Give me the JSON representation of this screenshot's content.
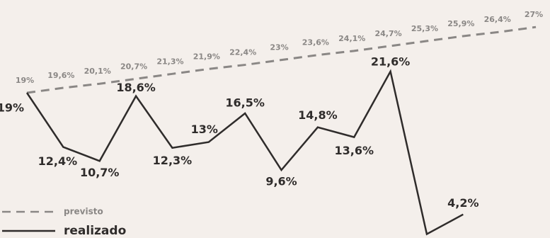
{
  "chart_data": {
    "type": "line",
    "categories": [
      null,
      null,
      null,
      null,
      null,
      null,
      null,
      null,
      null,
      null,
      null,
      null,
      null,
      null,
      null
    ],
    "ylim": [
      0,
      28
    ],
    "legend": "bottom-left",
    "series": [
      {
        "name": "previsto",
        "color": "#8a8785",
        "dashed": true,
        "values": [
          19,
          19.6,
          20.1,
          20.7,
          21.3,
          21.9,
          22.4,
          23,
          23.6,
          24.1,
          24.7,
          25.3,
          25.9,
          26.4,
          27
        ],
        "value_labels": [
          "19%",
          "19,6%",
          "20,1%",
          "20,7%",
          "21,3%",
          "21,9%",
          "22,4%",
          "23%",
          "23,6%",
          "24,1%",
          "24,7%",
          "25,3%",
          "25,9%",
          "26,4%",
          "27%"
        ]
      },
      {
        "name": "realizado",
        "color": "#2f2c2b",
        "dashed": false,
        "values": [
          19,
          12.4,
          10.7,
          18.6,
          12.3,
          13,
          16.5,
          9.6,
          14.8,
          13.6,
          21.6,
          1.8,
          4.2,
          null,
          null
        ],
        "value_labels": [
          "19%",
          "12,4%",
          "10,7%",
          "18,6%",
          "12,3%",
          "13%",
          "16,5%",
          "9,6%",
          "14,8%",
          "13,6%",
          "21,6%",
          null,
          "4,2%",
          null,
          null
        ]
      }
    ]
  }
}
